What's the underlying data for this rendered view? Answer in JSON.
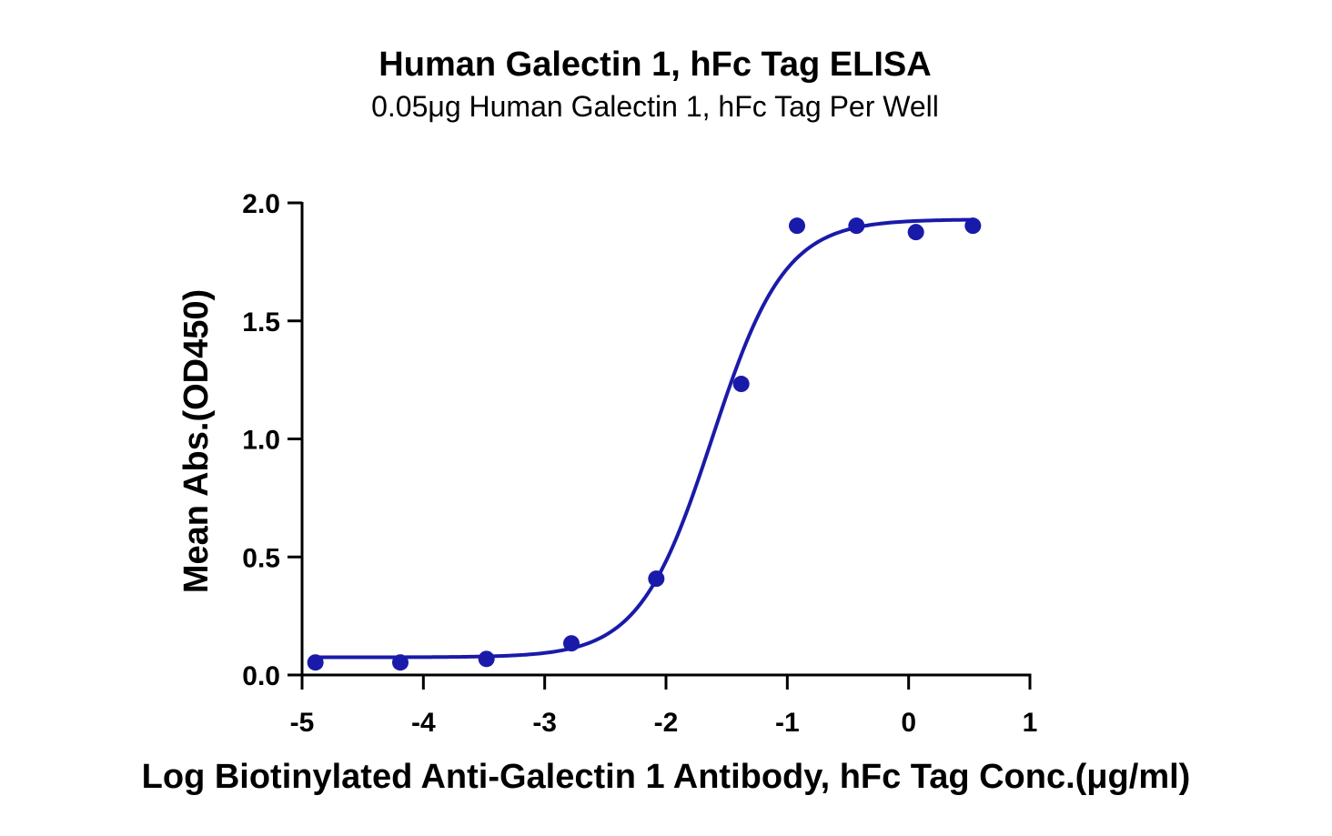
{
  "chart_data": {
    "type": "scatter",
    "title": "Human Galectin 1, hFc Tag ELISA",
    "subtitle": "0.05μg Human Galectin 1, hFc Tag Per Well",
    "xlabel": "Log Biotinylated Anti-Galectin 1 Antibody, hFc Tag Conc.(μg/ml)",
    "ylabel": "Mean Abs.(OD450)",
    "xlim": [
      -5,
      1
    ],
    "ylim": [
      0,
      2.0
    ],
    "x_ticks": [
      -5,
      -4,
      -3,
      -2,
      -1,
      0,
      1
    ],
    "x_tick_labels": [
      "-5",
      "-4",
      "-3",
      "-2",
      "-1",
      "0",
      "1"
    ],
    "y_ticks": [
      0,
      0.5,
      1.0,
      1.5,
      2.0
    ],
    "y_tick_labels": [
      "0.0",
      "0.5",
      "1.0",
      "1.5",
      "2.0"
    ],
    "grid": false,
    "series": [
      {
        "color": "#1a1aaa",
        "points": [
          {
            "x": -4.89,
            "y": 0.053
          },
          {
            "x": -4.19,
            "y": 0.053
          },
          {
            "x": -3.48,
            "y": 0.068
          },
          {
            "x": -2.78,
            "y": 0.134
          },
          {
            "x": -2.08,
            "y": 0.408
          },
          {
            "x": -1.38,
            "y": 1.233
          },
          {
            "x": -0.92,
            "y": 1.903
          },
          {
            "x": -0.43,
            "y": 1.903
          },
          {
            "x": 0.06,
            "y": 1.876
          },
          {
            "x": 0.53,
            "y": 1.903
          }
        ],
        "fit": {
          "model": "4PL",
          "bottom": 0.075,
          "top": 1.93,
          "logEC50": -1.62,
          "hill": 1.45
        }
      }
    ]
  }
}
